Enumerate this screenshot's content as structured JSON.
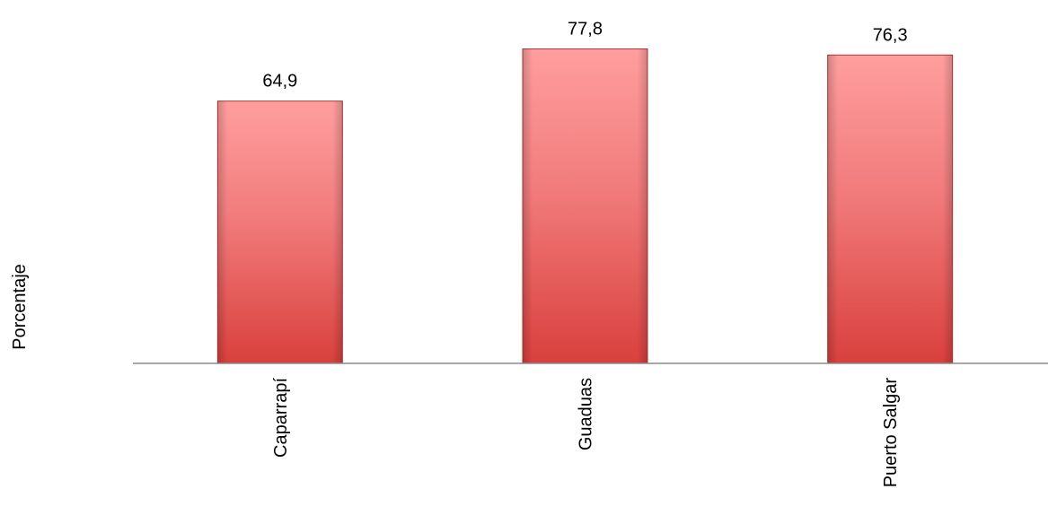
{
  "chart_data": {
    "type": "bar",
    "categories": [
      "Caparrapí",
      "Guaduas",
      "Puerto Salgar"
    ],
    "values": [
      64.9,
      77.8,
      76.3
    ],
    "value_labels": [
      "64,9",
      "77,8",
      "76,3"
    ],
    "title": "",
    "xlabel": "",
    "ylabel": "Porcentaje",
    "y_axis_visible": false,
    "grid": false,
    "legend": "none",
    "colors": {
      "bar_top": "#ff9e9e",
      "bar_bottom": "#d9403d",
      "bar_edge": "#b23a36",
      "axis": "#8c8c8c"
    }
  }
}
